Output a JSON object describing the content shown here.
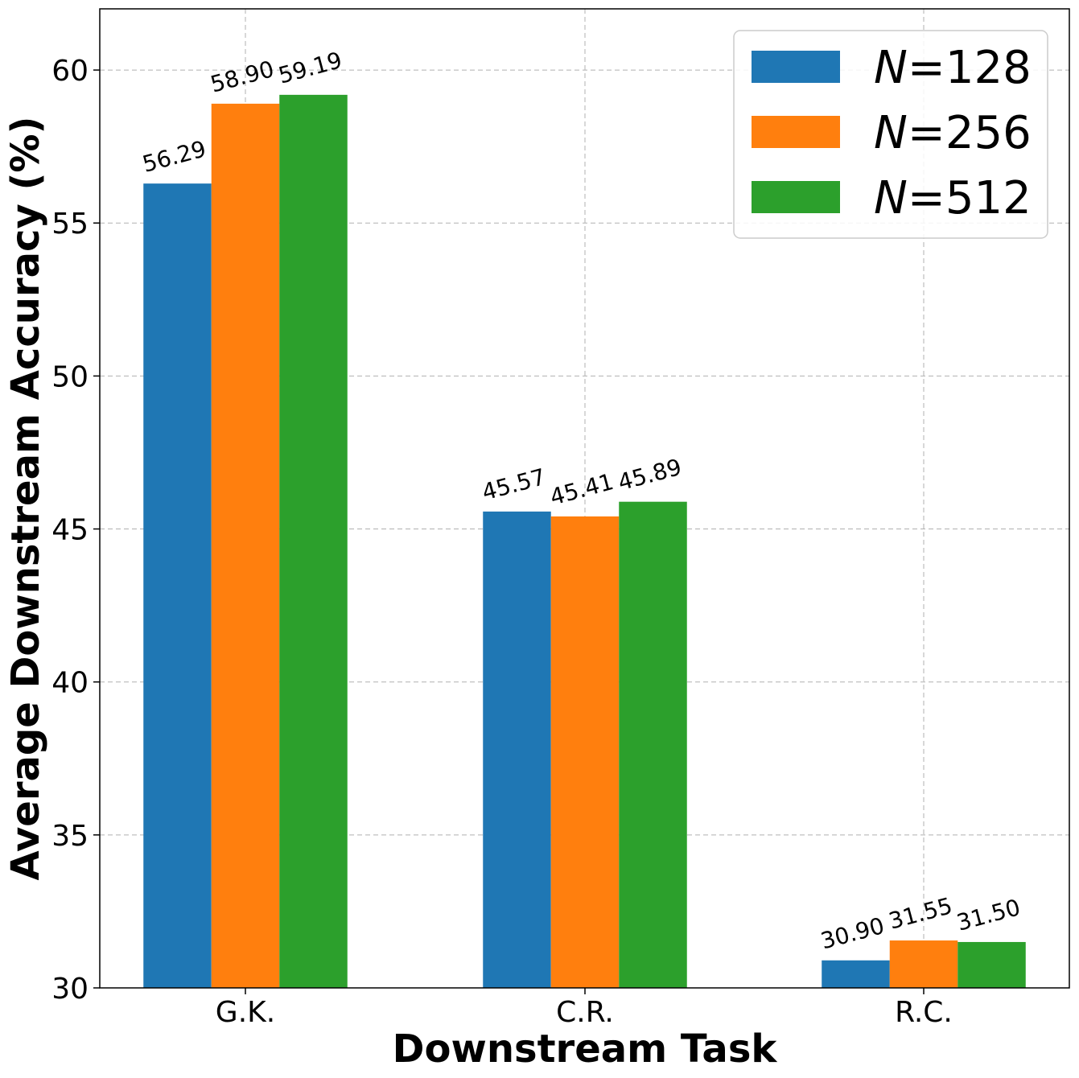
{
  "chart_data": {
    "type": "bar",
    "title": "",
    "xlabel": "Downstream Task",
    "ylabel": "Average Downstream Accuracy (%)",
    "categories": [
      "G.K.",
      "C.R.",
      "R.C."
    ],
    "series": [
      {
        "name": "N=128",
        "values": [
          56.29,
          45.57,
          30.9
        ],
        "labels": [
          "56.29",
          "45.57",
          "30.90"
        ],
        "color": "#1f77b4"
      },
      {
        "name": "N=256",
        "values": [
          58.9,
          45.41,
          31.55
        ],
        "labels": [
          "58.90",
          "45.41",
          "31.55"
        ],
        "color": "#ff7f0e"
      },
      {
        "name": "N=512",
        "values": [
          59.19,
          45.89,
          31.5
        ],
        "labels": [
          "59.19",
          "45.89",
          "31.50"
        ],
        "color": "#2ca02c"
      }
    ],
    "ylim": [
      30,
      62
    ],
    "yticks": [
      "30",
      "35",
      "40",
      "45",
      "50",
      "55",
      "60"
    ],
    "grid": true,
    "legend": "top-right"
  }
}
